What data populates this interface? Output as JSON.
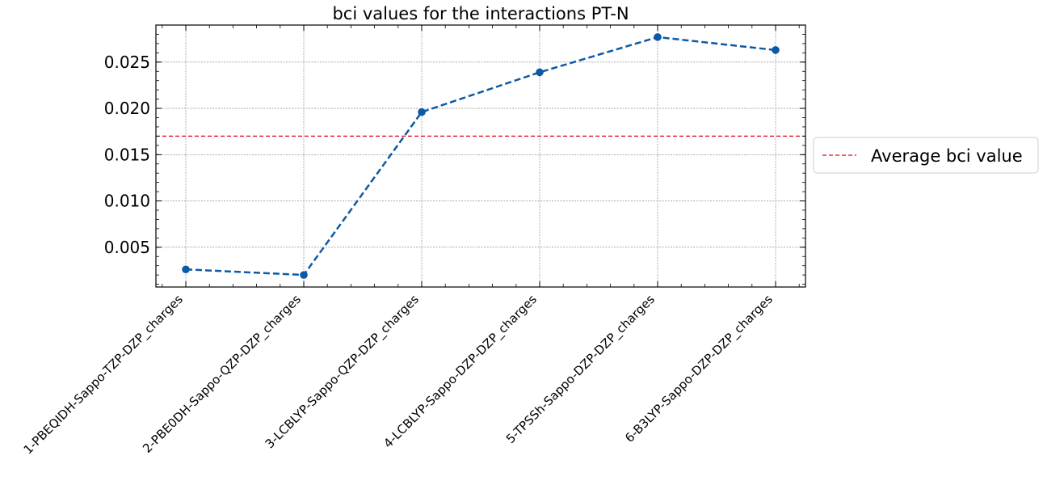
{
  "chart_data": {
    "type": "line",
    "title": "bci values for the interactions PT-N",
    "xlabel": "",
    "ylabel": "",
    "categories": [
      "1-PBEQIDH-Sappo-TZP-DZP_charges",
      "2-PBE0DH-Sappo-QZP-DZP_charges",
      "3-LCBLYP-Sappo-QZP-DZP_charges",
      "4-LCBLYP-Sappo-DZP-DZP_charges",
      "5-TPSSh-Sappo-DZP-DZP_charges",
      "6-B3LYP-Sappo-DZP-DZP_charges"
    ],
    "series": [
      {
        "values": [
          0.0026,
          0.002,
          0.0196,
          0.0239,
          0.0277,
          0.0263
        ],
        "color": "#0c5aa6",
        "line_style": "dashed",
        "marker": "circle"
      }
    ],
    "reference_line": {
      "name": "Average bci value",
      "value": 0.017,
      "color": "#e8000b",
      "line_style": "dashed"
    },
    "yticks": [
      "0.005",
      "0.010",
      "0.015",
      "0.020",
      "0.025"
    ],
    "ytick_values": [
      0.005,
      0.01,
      0.015,
      0.02,
      0.025
    ],
    "ylim": [
      0.0007,
      0.029
    ],
    "grid": true,
    "legend_position": "outside-right"
  }
}
